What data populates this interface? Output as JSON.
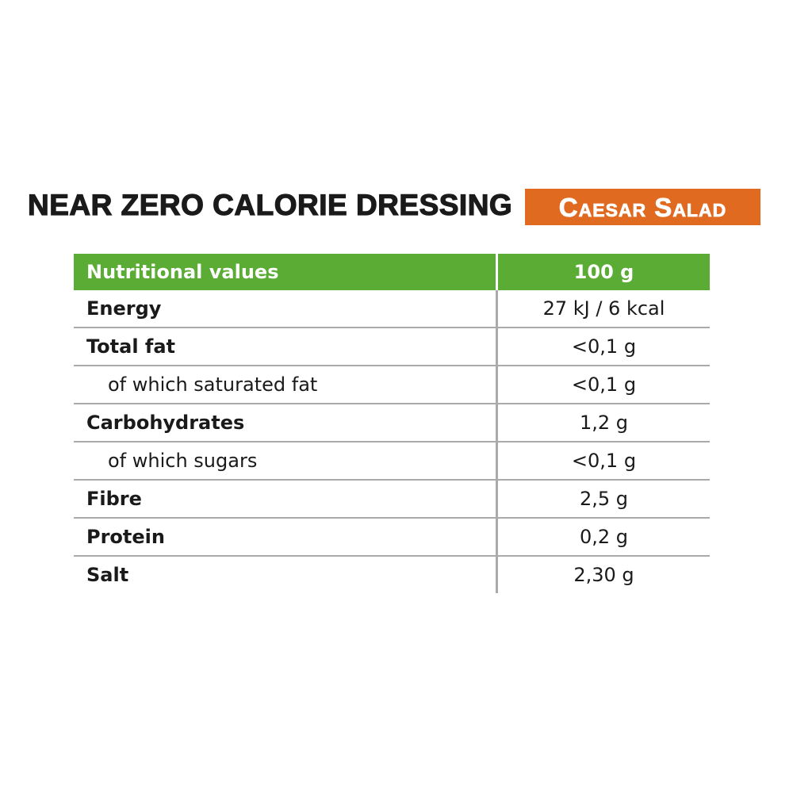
{
  "header": {
    "title": "NEAR ZERO CALORIE DRESSING",
    "badge": "Caesar Salad"
  },
  "table": {
    "columns": [
      "Nutritional values",
      "100 g"
    ],
    "rows": [
      [
        "Energy",
        "27 kJ / 6 kcal"
      ],
      [
        "Total fat",
        "<0,1 g"
      ],
      [
        "of which saturated fat",
        "<0,1 g"
      ],
      [
        "Carbohydrates",
        "1,2 g"
      ],
      [
        "of which sugars",
        "<0,1 g"
      ],
      [
        "Fibre",
        "2,5 g"
      ],
      [
        "Protein",
        "0,2 g"
      ],
      [
        "Salt",
        "2,30 g"
      ]
    ]
  }
}
